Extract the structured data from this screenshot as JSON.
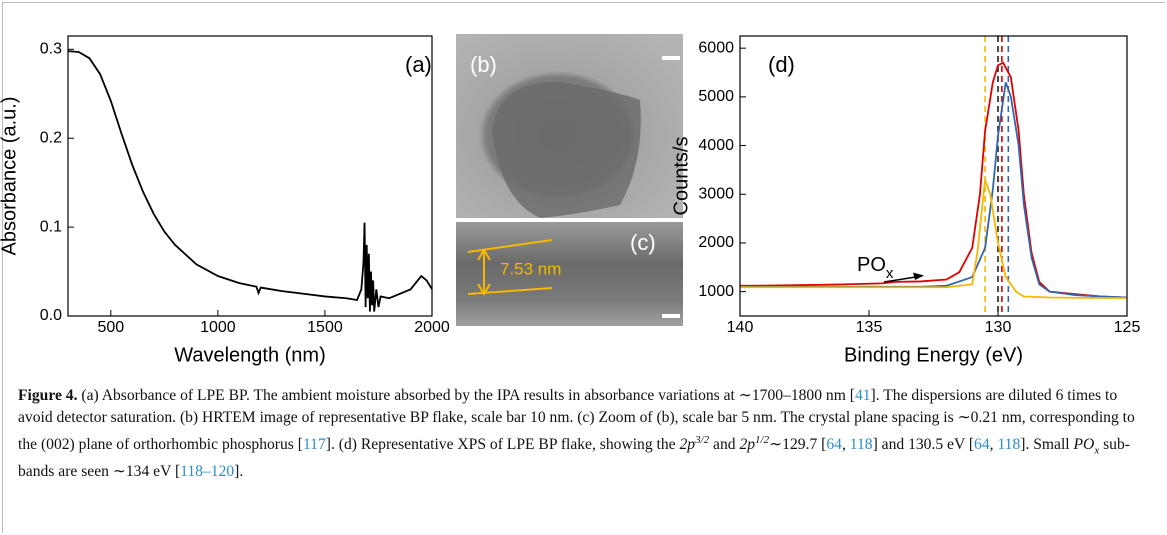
{
  "chart_data": [
    {
      "type": "line",
      "panel_label": "(a)",
      "xlabel": "Wavelength (nm)",
      "ylabel": "Absorbance (a.u.)",
      "color": "#000000",
      "x": [
        300,
        350,
        400,
        450,
        500,
        550,
        600,
        650,
        700,
        750,
        800,
        900,
        1000,
        1100,
        1180,
        1190,
        1200,
        1300,
        1400,
        1500,
        1600,
        1650,
        1670,
        1680,
        1685,
        1690,
        1695,
        1700,
        1705,
        1710,
        1715,
        1720,
        1725,
        1730,
        1740,
        1750,
        1760,
        1800,
        1850,
        1900,
        1950,
        1975,
        2000
      ],
      "values": [
        0.298,
        0.297,
        0.29,
        0.272,
        0.242,
        0.205,
        0.17,
        0.14,
        0.115,
        0.095,
        0.08,
        0.058,
        0.045,
        0.037,
        0.033,
        0.026,
        0.032,
        0.028,
        0.025,
        0.022,
        0.02,
        0.018,
        0.03,
        0.06,
        0.105,
        0.01,
        0.08,
        0.02,
        0.07,
        0.005,
        0.05,
        0.012,
        0.04,
        0.005,
        0.03,
        0.01,
        0.022,
        0.02,
        0.025,
        0.03,
        0.045,
        0.04,
        0.03
      ],
      "xlim": [
        300,
        2000
      ],
      "xticks": [
        500,
        1000,
        1500,
        2000
      ],
      "ylim": [
        0,
        0.315
      ],
      "yticks": [
        {
          "value": 0,
          "label": "0.0"
        },
        0.1,
        0.2,
        0.3
      ]
    },
    {
      "type": "line",
      "panel_label": "(d)",
      "xlabel": "Binding Energy (eV)",
      "ylabel": "Counts/s",
      "series": [
        {
          "color": "#e00000",
          "x": [
            140,
            138,
            136,
            134.5,
            134,
            133,
            132,
            131.5,
            131,
            130.7,
            130.5,
            130.2,
            130,
            129.8,
            129.5,
            129.2,
            129,
            128.7,
            128.4,
            128,
            127,
            126,
            125
          ],
          "values": [
            1120,
            1130,
            1150,
            1170,
            1200,
            1210,
            1250,
            1400,
            1900,
            3000,
            4300,
            5300,
            5650,
            5700,
            5400,
            4300,
            3000,
            1800,
            1200,
            1000,
            950,
            900,
            880
          ]
        },
        {
          "color": "#3366aa",
          "x": [
            140,
            133,
            132,
            131,
            130.5,
            130.2,
            130,
            129.7,
            129.5,
            129.2,
            129,
            128.7,
            128.4,
            128,
            127,
            126,
            125
          ],
          "values": [
            1100,
            1100,
            1120,
            1300,
            1900,
            3100,
            4200,
            5300,
            5000,
            4000,
            2800,
            1700,
            1150,
            1000,
            930,
            900,
            880
          ]
        },
        {
          "color": "#f5b800",
          "x": [
            140,
            132,
            131,
            130.8,
            130.5,
            130.3,
            130,
            129.7,
            129.3,
            129,
            128,
            126,
            125
          ],
          "values": [
            1090,
            1090,
            1150,
            1800,
            3300,
            3000,
            2000,
            1300,
            1000,
            900,
            880,
            870,
            870
          ]
        }
      ],
      "reference_lines": [
        {
          "x": 130.5,
          "color": "#f5b800"
        },
        {
          "x": 130.0,
          "color": "#222222"
        },
        {
          "x": 129.85,
          "color": "#e00000"
        },
        {
          "x": 129.6,
          "color": "#3366aa"
        }
      ],
      "annotation": {
        "text": "PO",
        "subscript": "x"
      },
      "xlim": [
        140,
        125
      ],
      "xticks": [
        140,
        135,
        130,
        125
      ],
      "ylim": [
        500,
        6250
      ],
      "yticks": [
        1000,
        2000,
        3000,
        4000,
        5000,
        6000
      ]
    }
  ],
  "images": [
    {
      "label": "(b)"
    },
    {
      "label": "(c)",
      "annotation": "7.53 nm"
    }
  ],
  "caption": [
    {
      "text": "Figure 4.",
      "style": "bold"
    },
    {
      "text": " (a) Absorbance of LPE BP. The ambient moisture absorbed by the IPA results in absorbance variations at ∼1700–1800 nm [",
      "style": "normal"
    },
    {
      "text": "41",
      "style": "link"
    },
    {
      "text": "]. The dispersions are diluted 6 times to avoid detector saturation. (b) HRTEM image of representative BP flake, scale bar 10 nm. (c) Zoom of (b), scale bar 5 nm. The crystal plane spacing is ∼0.21 nm, corresponding to the (002) plane of orthorhombic phosphorus [",
      "style": "normal"
    },
    {
      "text": "117",
      "style": "link"
    },
    {
      "text": "]. (d) Representative XPS of LPE BP flake, showing the ",
      "style": "normal"
    },
    {
      "text": "2p",
      "style": "italic"
    },
    {
      "text": "3/2",
      "style": "sup"
    },
    {
      "text": " and ",
      "style": "normal"
    },
    {
      "text": "2p",
      "style": "italic"
    },
    {
      "text": "1/2",
      "style": "sup"
    },
    {
      "text": "∼129.7 [",
      "style": "normal"
    },
    {
      "text": "64",
      "style": "link"
    },
    {
      "text": ", ",
      "style": "normal"
    },
    {
      "text": "118",
      "style": "link"
    },
    {
      "text": "] and 130.5 eV [",
      "style": "normal"
    },
    {
      "text": "64",
      "style": "link"
    },
    {
      "text": ", ",
      "style": "normal"
    },
    {
      "text": "118",
      "style": "link"
    },
    {
      "text": "]. Small ",
      "style": "normal"
    },
    {
      "text": "PO",
      "style": "italic"
    },
    {
      "text": "x",
      "style": "sub"
    },
    {
      "text": " sub-bands are seen ∼134 eV [",
      "style": "normal"
    },
    {
      "text": "118–120",
      "style": "link"
    },
    {
      "text": "].",
      "style": "normal"
    }
  ]
}
